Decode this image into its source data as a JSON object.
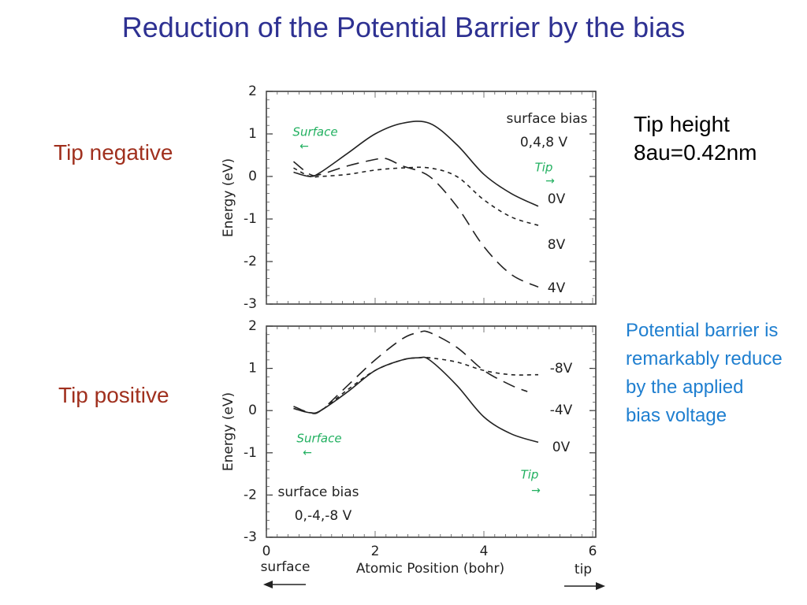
{
  "slide": {
    "title": "Reduction of the Potential Barrier by the bias",
    "label_top": "Tip negative",
    "label_bottom": "Tip positive",
    "tip_height_line1": "Tip height",
    "tip_height_line2": "8au=0.42nm",
    "note": "Potential barrier is remarkably reduce by the applied bias voltage"
  },
  "colors": {
    "title": "#2e3192",
    "label": "#a0301e",
    "note": "#1f7fd0",
    "annotation_green": "#22b060"
  },
  "chart_data": [
    {
      "type": "line",
      "ylabel": "Energy (eV)",
      "ylim": [
        -3,
        2
      ],
      "yticks": [
        "2",
        "1",
        "0",
        "-1",
        "-2",
        "-3"
      ],
      "xlim": [
        0,
        6
      ],
      "grid": false,
      "legend_title": "surface bias",
      "legend_subtitle": "0,4,8 V",
      "annotations": {
        "left": "Surface",
        "right": "Tip"
      },
      "series": [
        {
          "name": "0V",
          "style": "solid",
          "x": [
            0.5,
            0.8,
            1.0,
            1.5,
            2.0,
            2.5,
            3.0,
            3.5,
            4.0,
            4.5,
            5.0
          ],
          "y": [
            0.1,
            0.0,
            0.1,
            0.55,
            1.0,
            1.25,
            1.25,
            0.75,
            0.05,
            -0.4,
            -0.7
          ]
        },
        {
          "name": "8V",
          "style": "short-dash",
          "x": [
            0.5,
            0.8,
            1.0,
            1.5,
            2.0,
            2.5,
            3.0,
            3.5,
            4.0,
            4.5,
            5.0
          ],
          "y": [
            0.2,
            0.0,
            0.0,
            0.05,
            0.15,
            0.2,
            0.2,
            0.0,
            -0.55,
            -0.95,
            -1.15
          ]
        },
        {
          "name": "4V",
          "style": "long-dash",
          "x": [
            0.5,
            0.8,
            1.0,
            1.5,
            2.0,
            2.2,
            2.5,
            3.0,
            3.5,
            4.0,
            4.5,
            5.0
          ],
          "y": [
            0.35,
            0.05,
            0.05,
            0.25,
            0.4,
            0.42,
            0.25,
            0.0,
            -0.7,
            -1.65,
            -2.3,
            -2.6
          ]
        }
      ]
    },
    {
      "type": "line",
      "ylabel": "Energy (eV)",
      "ylim": [
        -3,
        2
      ],
      "yticks": [
        "2",
        "1",
        "0",
        "-1",
        "-2",
        "-3"
      ],
      "xlim": [
        0,
        6
      ],
      "xticks": [
        "0",
        "2",
        "4",
        "6"
      ],
      "xlabel": "Atomic Position (bohr)",
      "x_left_label": "surface",
      "x_right_label": "tip",
      "grid": false,
      "legend_title": "surface bias",
      "legend_subtitle": "0,-4,-8 V",
      "annotations": {
        "left": "Surface",
        "right": "Tip"
      },
      "series": [
        {
          "name": "0V",
          "style": "solid",
          "x": [
            0.5,
            0.8,
            1.0,
            1.5,
            2.0,
            2.5,
            2.8,
            3.0,
            3.5,
            4.0,
            4.5,
            5.0
          ],
          "y": [
            0.05,
            -0.05,
            0.0,
            0.45,
            0.95,
            1.2,
            1.25,
            1.2,
            0.6,
            -0.15,
            -0.55,
            -0.75
          ]
        },
        {
          "name": "-4V",
          "style": "long-dash",
          "x": [
            0.5,
            0.8,
            1.0,
            1.5,
            2.0,
            2.5,
            2.8,
            3.0,
            3.5,
            4.0,
            4.5,
            4.8
          ],
          "y": [
            0.1,
            -0.05,
            0.0,
            0.6,
            1.2,
            1.7,
            1.85,
            1.85,
            1.5,
            0.95,
            0.6,
            0.45
          ]
        },
        {
          "name": "-8V",
          "style": "short-dash",
          "x": [
            0.5,
            0.8,
            1.0,
            1.5,
            2.0,
            2.5,
            2.8,
            3.0,
            3.5,
            4.0,
            4.5,
            5.0
          ],
          "y": [
            0.05,
            -0.05,
            0.0,
            0.5,
            0.95,
            1.2,
            1.25,
            1.25,
            1.15,
            0.95,
            0.85,
            0.85
          ]
        }
      ]
    }
  ]
}
